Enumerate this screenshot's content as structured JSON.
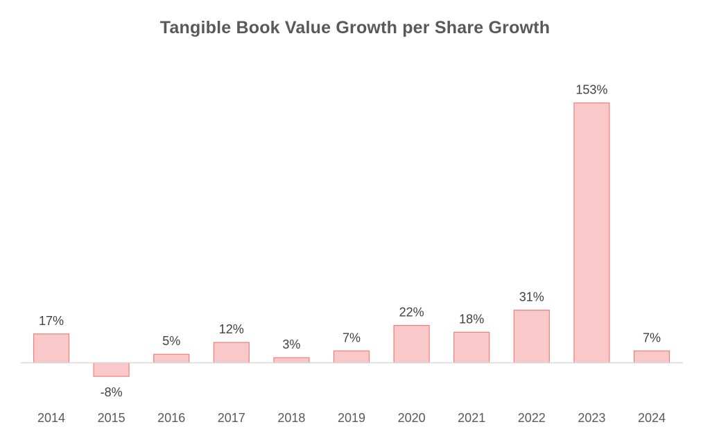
{
  "chart_data": {
    "type": "bar",
    "title": "Tangible Book Value Growth per Share Growth",
    "categories": [
      "2014",
      "2015",
      "2016",
      "2017",
      "2018",
      "2019",
      "2020",
      "2021",
      "2022",
      "2023",
      "2024"
    ],
    "values": [
      17,
      -8,
      5,
      12,
      3,
      7,
      22,
      18,
      31,
      153,
      7
    ],
    "data_labels": [
      "17%",
      "-8%",
      "5%",
      "12%",
      "3%",
      "7%",
      "22%",
      "18%",
      "31%",
      "153%",
      "7%"
    ],
    "value_unit": "%",
    "grid": false,
    "legend": "none",
    "colors": {
      "bar_fill": "#f9c9ca",
      "bar_stroke": "#ef7f7b",
      "title": "#595959",
      "axis_line": "#d9d9d9"
    }
  }
}
